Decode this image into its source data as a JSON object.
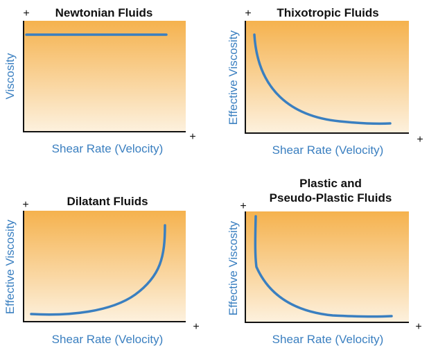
{
  "panels": [
    {
      "title": [
        "Newtonian Fluids"
      ],
      "y_label": "Viscosity",
      "x_label": "Shear Rate (Velocity)",
      "plus_y": "+",
      "plus_x": "+"
    },
    {
      "title": [
        "Thixotropic Fluids"
      ],
      "y_label": "Effective Viscosity",
      "x_label": "Shear Rate (Velocity)",
      "plus_y": "+",
      "plus_x": "+"
    },
    {
      "title": [
        "Dilatant Fluids"
      ],
      "y_label": "Effective Viscosity",
      "x_label": "Shear Rate (Velocity)",
      "plus_y": "+",
      "plus_x": "+"
    },
    {
      "title": [
        "Plastic and",
        "Pseudo-Plastic Fluids"
      ],
      "y_label": "Effective Viscosity",
      "x_label": "Shear Rate (Velocity)",
      "plus_y": "+",
      "plus_x": "+"
    }
  ]
}
